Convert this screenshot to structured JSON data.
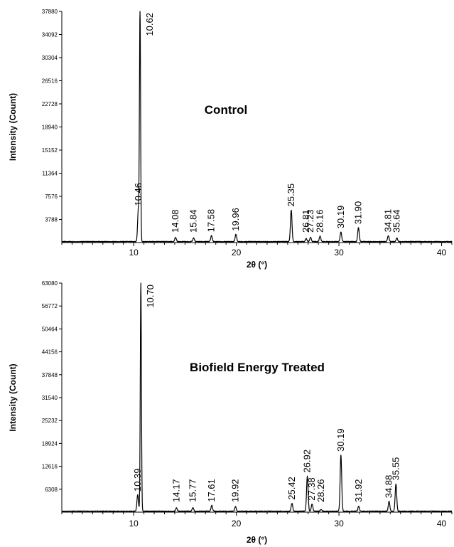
{
  "chart_data": [
    {
      "type": "line",
      "title": "Control",
      "xlabel": "2θ (°)",
      "ylabel": "Intensity (Count)",
      "xlim": [
        3,
        41
      ],
      "ylim": [
        0,
        37880
      ],
      "x_ticks": [
        10,
        20,
        30,
        40
      ],
      "y_ticks": [
        3788,
        7576,
        11364,
        15152,
        18940,
        22728,
        26516,
        30304,
        34092,
        37880
      ],
      "grid": false,
      "series": [
        {
          "peaks": [
            {
              "x": 10.46,
              "y": 5300,
              "label": "10.46"
            },
            {
              "x": 10.62,
              "y": 37880,
              "label": "10.62"
            },
            {
              "x": 14.08,
              "y": 700,
              "label": "14.08"
            },
            {
              "x": 15.84,
              "y": 600,
              "label": "15.84"
            },
            {
              "x": 17.58,
              "y": 1000,
              "label": "17.58"
            },
            {
              "x": 19.96,
              "y": 1200,
              "label": "19.96"
            },
            {
              "x": 25.35,
              "y": 5200,
              "label": "25.35"
            },
            {
              "x": 26.81,
              "y": 500,
              "label": "26.81"
            },
            {
              "x": 27.23,
              "y": 700,
              "label": "27.23"
            },
            {
              "x": 28.16,
              "y": 900,
              "label": "28.16"
            },
            {
              "x": 30.19,
              "y": 1600,
              "label": "30.19"
            },
            {
              "x": 31.9,
              "y": 2300,
              "label": "31.90"
            },
            {
              "x": 34.81,
              "y": 1000,
              "label": "34.81"
            },
            {
              "x": 35.64,
              "y": 600,
              "label": "35.64"
            }
          ]
        }
      ]
    },
    {
      "type": "line",
      "title": "Biofield Energy Treated",
      "xlabel": "2θ (°)",
      "ylabel": "Intensity (Count)",
      "xlim": [
        3,
        41
      ],
      "ylim": [
        0,
        63080
      ],
      "x_ticks": [
        10,
        20,
        30,
        40
      ],
      "y_ticks": [
        6308,
        12616,
        18924,
        25232,
        31540,
        37848,
        44156,
        50464,
        56772,
        63080
      ],
      "grid": false,
      "series": [
        {
          "peaks": [
            {
              "x": 10.39,
              "y": 4500,
              "label": "10.39"
            },
            {
              "x": 10.7,
              "y": 63080,
              "label": "10.70"
            },
            {
              "x": 14.17,
              "y": 900,
              "label": "14.17"
            },
            {
              "x": 15.77,
              "y": 1000,
              "label": "15.77"
            },
            {
              "x": 17.61,
              "y": 1600,
              "label": "17.61"
            },
            {
              "x": 19.92,
              "y": 1300,
              "label": "19.92"
            },
            {
              "x": 25.42,
              "y": 2200,
              "label": "25.42"
            },
            {
              "x": 26.92,
              "y": 9700,
              "label": "26.92"
            },
            {
              "x": 27.38,
              "y": 2000,
              "label": "27.38"
            },
            {
              "x": 28.26,
              "y": 500,
              "label": "28.26"
            },
            {
              "x": 30.19,
              "y": 15500,
              "label": "30.19"
            },
            {
              "x": 31.92,
              "y": 1300,
              "label": "31.92"
            },
            {
              "x": 34.88,
              "y": 2700,
              "label": "34.88"
            },
            {
              "x": 35.55,
              "y": 7600,
              "label": "35.55"
            }
          ]
        }
      ]
    }
  ]
}
